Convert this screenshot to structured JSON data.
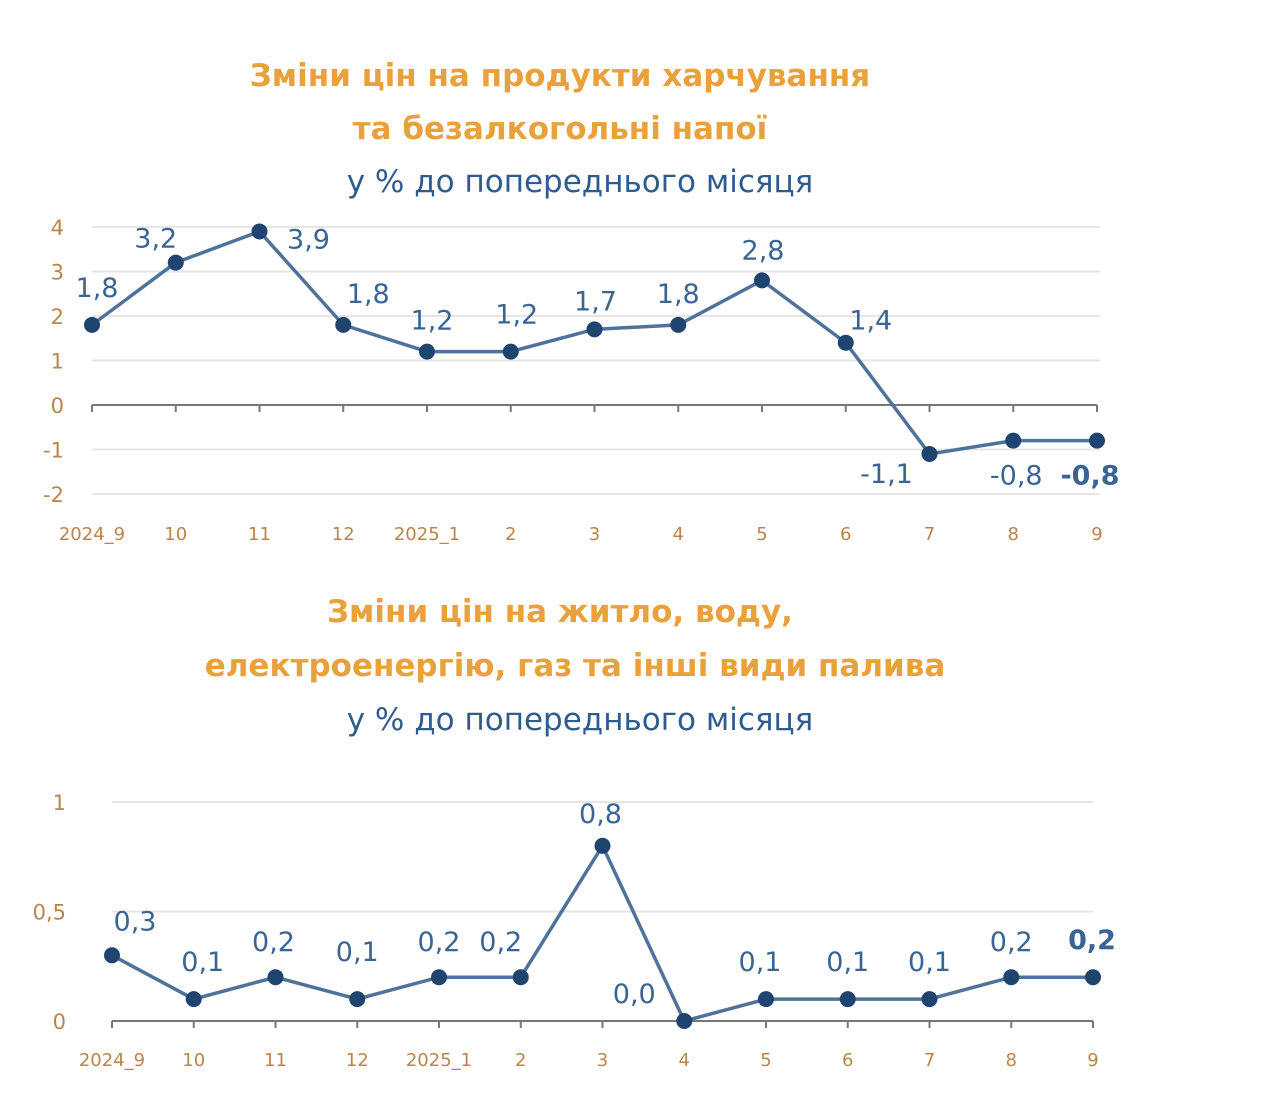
{
  "chart_data": [
    {
      "type": "line",
      "title": [
        "Зміни цін на продукти харчування",
        "та безалкогольні напої"
      ],
      "subtitle": "у % до попереднього місяця",
      "categories": [
        "2024_9",
        "10",
        "11",
        "12",
        "2025_1",
        "2",
        "3",
        "4",
        "5",
        "6",
        "7",
        "8",
        "9"
      ],
      "values": [
        1.8,
        3.2,
        3.9,
        1.8,
        1.2,
        1.2,
        1.7,
        1.8,
        2.8,
        1.4,
        -1.1,
        -0.8,
        -0.8
      ],
      "data_labels": [
        "1,8",
        "3,2",
        "3,9",
        "1,8",
        "1,2",
        "1,2",
        "1,7",
        "1,8",
        "2,8",
        "1,4",
        "-1,1",
        "-0,8",
        "-0,8"
      ],
      "yticks": [
        "4",
        "3",
        "2",
        "1",
        "0",
        "-1",
        "-2"
      ],
      "ytick_values": [
        4,
        3,
        2,
        1,
        0,
        -1,
        -2
      ],
      "ylim": [
        -2,
        4
      ],
      "grid": true,
      "colors": {
        "title": "#E9A23B",
        "subtitle": "#2F5C8E",
        "line": "#4E739B",
        "marker": "#1F4470",
        "label": "#3A6593",
        "tick": "#B9854A"
      }
    },
    {
      "type": "line",
      "title": [
        "Зміни цін на житло, воду,",
        "електроенергію, газ та інші види палива"
      ],
      "subtitle": "у % до попереднього місяця",
      "categories": [
        "2024_9",
        "10",
        "11",
        "12",
        "2025_1",
        "2",
        "3",
        "4",
        "5",
        "6",
        "7",
        "8",
        "9"
      ],
      "values": [
        0.3,
        0.1,
        0.2,
        0.1,
        0.2,
        0.2,
        0.8,
        0.0,
        0.1,
        0.1,
        0.1,
        0.2,
        0.2
      ],
      "data_labels": [
        "0,3",
        "0,1",
        "0,2",
        "0,1",
        "0,2",
        "0,2",
        "0,8",
        "0,0",
        "0,1",
        "0,1",
        "0,1",
        "0,2",
        "0,2"
      ],
      "yticks": [
        "1",
        "0,5",
        "0"
      ],
      "ytick_values": [
        1,
        0.5,
        0
      ],
      "ylim": [
        0,
        1
      ],
      "grid": true,
      "colors": {
        "title": "#E9A23B",
        "subtitle": "#2F5C8E",
        "line": "#4E739B",
        "marker": "#1F4470",
        "label": "#3A6593",
        "tick": "#B9854A"
      }
    }
  ]
}
